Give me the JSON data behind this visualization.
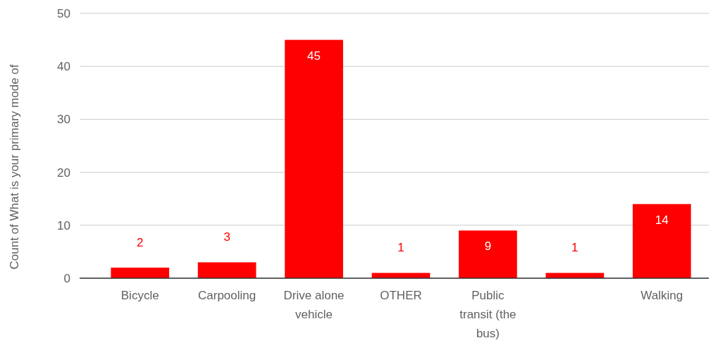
{
  "chart_data": {
    "type": "bar",
    "ylabel": "Count of What is your primary mode of",
    "categories": [
      "Bicycle",
      "Carpooling",
      "Drive alone vehicle",
      "OTHER",
      "Public transit (the bus)",
      null,
      "Walking"
    ],
    "values": [
      2,
      3,
      45,
      1,
      9,
      1,
      14
    ],
    "color": "#ff0000",
    "ylim": [
      0,
      50
    ],
    "yticks": [
      0,
      10,
      20,
      30,
      40,
      50
    ],
    "grid": "y",
    "data_labels": true
  }
}
